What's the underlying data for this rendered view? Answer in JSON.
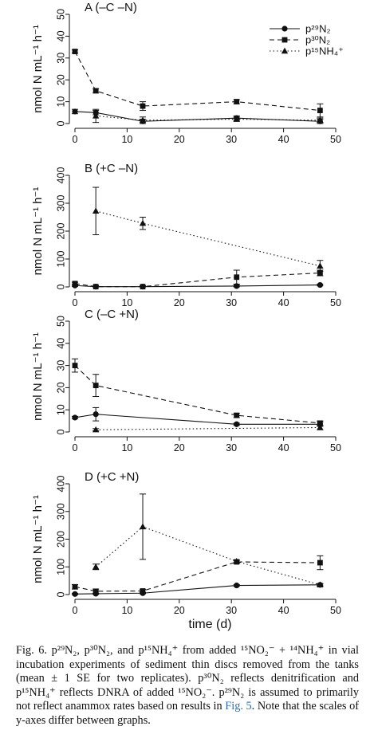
{
  "chart_data": [
    {
      "type": "line",
      "panel_label": "A  (–C –N)",
      "ylabel": "nmol N mL⁻¹ h⁻¹",
      "xlabel": "",
      "xlim": [
        0,
        50
      ],
      "ylim": [
        0,
        50
      ],
      "xticks": [
        "0",
        "10",
        "20",
        "30",
        "40",
        "50"
      ],
      "yticks": [
        "0",
        "10",
        "20",
        "30",
        "40",
        "50"
      ],
      "legend": {
        "position": "top-right",
        "entries": [
          {
            "label": "p²⁹N₂",
            "marker": "circle",
            "dash": "solid"
          },
          {
            "label": "p³⁰N₂",
            "marker": "square",
            "dash": "dashed"
          },
          {
            "label": "p¹⁵NH₄⁺",
            "marker": "triangle",
            "dash": "dotted"
          }
        ]
      },
      "x": [
        0,
        4,
        13,
        31,
        47
      ],
      "series": [
        {
          "name": "p²⁹N₂",
          "marker": "circle",
          "dash": "solid",
          "values": [
            5.5,
            5,
            1,
            2.5,
            1
          ],
          "err": [
            1,
            1,
            1,
            1,
            1
          ]
        },
        {
          "name": "p³⁰N₂",
          "marker": "square",
          "dash": "dashed",
          "values": [
            33,
            15,
            8,
            10,
            6
          ],
          "err": [
            0.7,
            1,
            2,
            1,
            3
          ]
        },
        {
          "name": "p¹⁵NH₄⁺",
          "marker": "triangle",
          "dash": "dotted",
          "values": [
            null,
            3.5,
            1.5,
            2,
            1.5
          ],
          "err": [
            0,
            3,
            1.5,
            1,
            1
          ]
        }
      ]
    },
    {
      "type": "line",
      "panel_label": "B  (+C –N)",
      "ylabel": "nmol N mL⁻¹ h⁻¹",
      "xlabel": "",
      "xlim": [
        0,
        50
      ],
      "ylim": [
        0,
        400
      ],
      "xticks": [
        "0",
        "10",
        "20",
        "30",
        "40",
        "50"
      ],
      "yticks": [
        "0",
        "100",
        "200",
        "300",
        "400"
      ],
      "x": [
        0,
        4,
        13,
        31,
        47
      ],
      "series": [
        {
          "name": "p²⁹N₂",
          "marker": "circle",
          "dash": "solid",
          "values": [
            5,
            1,
            1,
            3,
            7
          ],
          "err": [
            3,
            2,
            2,
            3,
            3
          ]
        },
        {
          "name": "p³⁰N₂",
          "marker": "square",
          "dash": "dashed",
          "values": [
            12,
            1,
            1,
            35,
            50
          ],
          "err": [
            5,
            3,
            3,
            25,
            10
          ]
        },
        {
          "name": "p¹⁵NH₄⁺",
          "marker": "triangle",
          "dash": "dotted",
          "values": [
            null,
            272,
            228,
            null,
            75
          ],
          "err": [
            0,
            85,
            22,
            0,
            20
          ]
        }
      ]
    },
    {
      "type": "line",
      "panel_label": "C  (–C +N)",
      "ylabel": "nmol N mL⁻¹ h⁻¹",
      "xlabel": "",
      "xlim": [
        0,
        50
      ],
      "ylim": [
        0,
        50
      ],
      "xticks": [
        "0",
        "10",
        "20",
        "30",
        "40",
        "50"
      ],
      "yticks": [
        "0",
        "10",
        "20",
        "30",
        "40",
        "50"
      ],
      "x": [
        0,
        4,
        13,
        31,
        47
      ],
      "series": [
        {
          "name": "p²⁹N₂",
          "marker": "circle",
          "dash": "solid",
          "values": [
            6.5,
            8,
            null,
            3.5,
            3.5
          ],
          "err": [
            0.5,
            3,
            0,
            0.5,
            1
          ]
        },
        {
          "name": "p³⁰N₂",
          "marker": "square",
          "dash": "dashed",
          "values": [
            30,
            21,
            null,
            7.5,
            4
          ],
          "err": [
            3,
            5,
            0,
            1,
            1
          ]
        },
        {
          "name": "p¹⁵NH₄⁺",
          "marker": "triangle",
          "dash": "dotted",
          "values": [
            null,
            1,
            null,
            null,
            2
          ],
          "err": [
            0,
            0.5,
            0,
            0,
            1
          ]
        }
      ]
    },
    {
      "type": "line",
      "panel_label": "D  (+C +N)",
      "ylabel": "nmol N mL⁻¹ h⁻¹",
      "xlabel": "time (d)",
      "xlim": [
        0,
        50
      ],
      "ylim": [
        0,
        400
      ],
      "xticks": [
        "0",
        "10",
        "20",
        "30",
        "40",
        "50"
      ],
      "yticks": [
        "0",
        "100",
        "200",
        "300",
        "400"
      ],
      "x": [
        0,
        4,
        13,
        31,
        47
      ],
      "series": [
        {
          "name": "p²⁹N₂",
          "marker": "circle",
          "dash": "solid",
          "values": [
            2,
            3,
            5,
            33,
            35
          ],
          "err": [
            2,
            2,
            2,
            3,
            3
          ]
        },
        {
          "name": "p³⁰N₂",
          "marker": "square",
          "dash": "dashed",
          "values": [
            28,
            12,
            13,
            118,
            115
          ],
          "err": [
            8,
            8,
            5,
            5,
            25
          ]
        },
        {
          "name": "p¹⁵NH₄⁺",
          "marker": "triangle",
          "dash": "dotted",
          "values": [
            null,
            100,
            245,
            120,
            35
          ],
          "err": [
            0,
            10,
            118,
            5,
            5
          ]
        }
      ]
    }
  ],
  "caption": {
    "text": "Fig. 6. p²⁹N₂, p³⁰N₂, and p¹⁵NH₄⁺ from added ¹⁵NO₂⁻ + ¹⁴NH₄⁺ in vial incubation experiments of sediment thin discs removed from the tanks (mean ± 1 SE for two replicates). p³⁰N₂ reflects denitrification and p¹⁵NH₄⁺ reflects DNRA of added ¹⁵NO₂⁻. p²⁹N₂ is assumed to primarily not reflect anammox rates based on results in ",
    "link": "Fig. 5",
    "tail": ". Note that the scales of y-axes differ between graphs."
  }
}
